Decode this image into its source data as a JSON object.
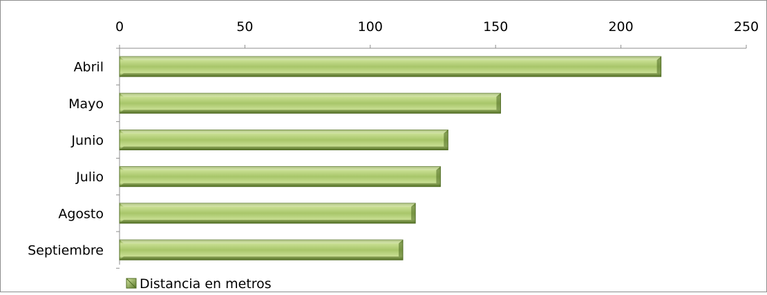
{
  "chart_data": {
    "type": "bar",
    "orientation": "horizontal",
    "categories": [
      "Abril",
      "Mayo",
      "Junio",
      "Julio",
      "Agosto",
      "Septiembre"
    ],
    "series": [
      {
        "name": "Distancia en metros",
        "values": [
          216,
          152,
          131,
          128,
          118,
          113
        ]
      }
    ],
    "xlim": [
      0,
      250
    ],
    "x_ticks": [
      "0",
      "50",
      "100",
      "150",
      "200",
      "250"
    ],
    "x_axis_position": "top",
    "grid": false,
    "legend_position": "bottom-left",
    "colors": {
      "bar_light": "#d6e6a4",
      "bar_mid": "#9bbb59",
      "bar_dark": "#5a7a2a",
      "axis": "#8c8c8c",
      "border": "#8c8c8c"
    }
  }
}
